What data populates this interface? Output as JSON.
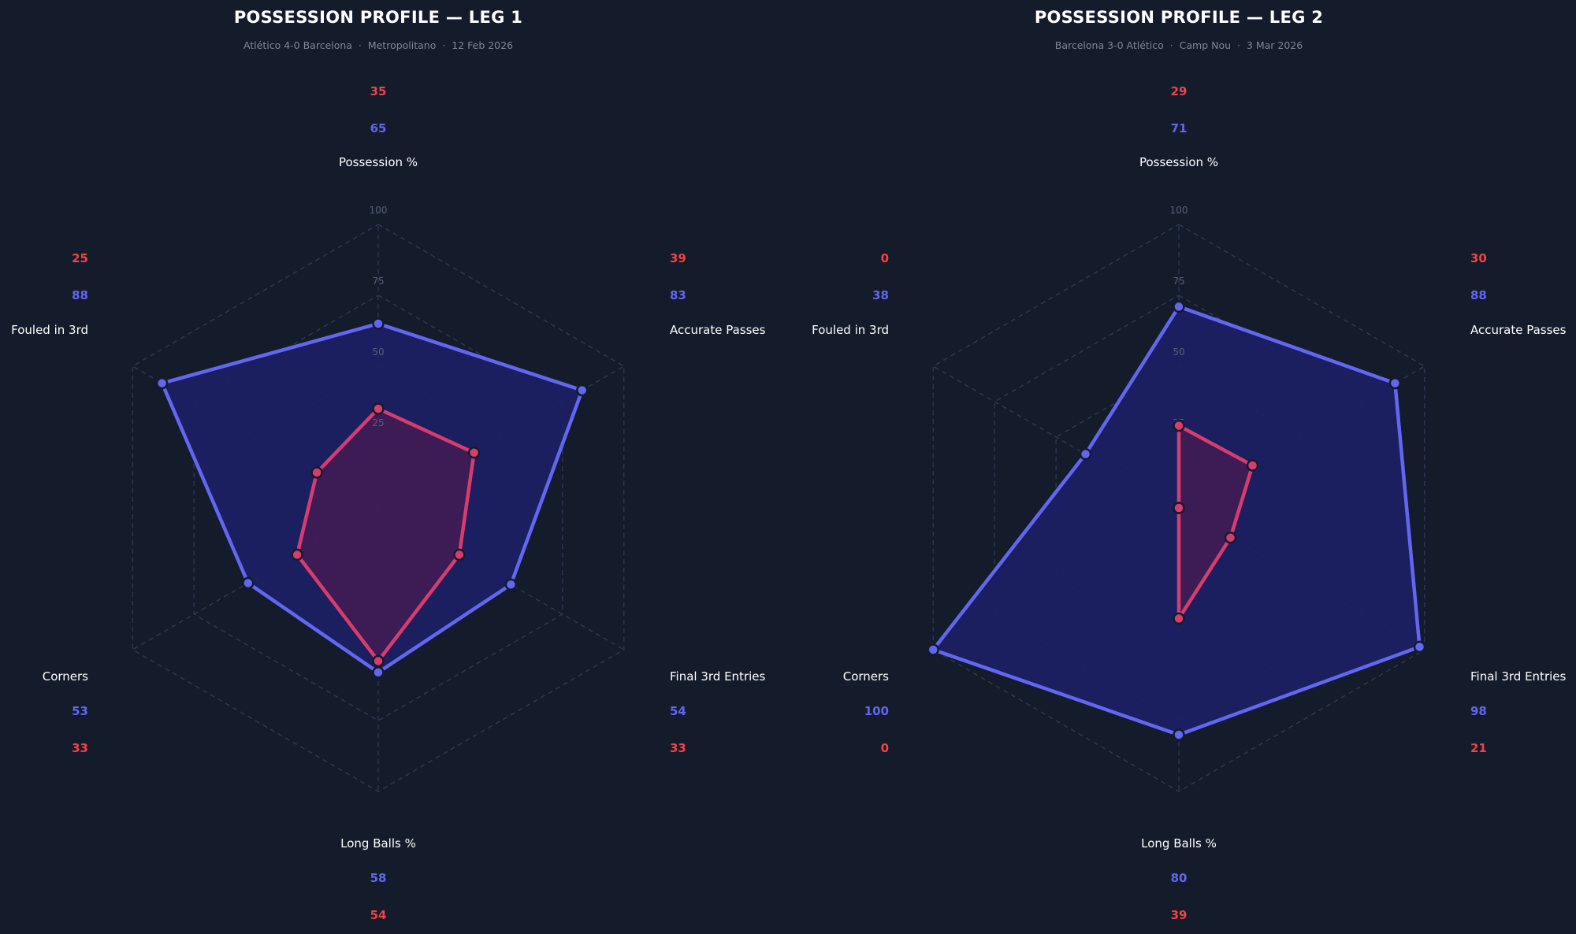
{
  "chart_data": [
    {
      "type": "radar",
      "title": "POSSESSION PROFILE — LEG 1",
      "subtitle": "Atlético 4-0 Barcelona  ·  Metropolitano  ·  12 Feb 2026",
      "axes": [
        "Possession %",
        "Accurate Passes",
        "Final 3rd Entries",
        "Long Balls %",
        "Corners",
        "Fouled in 3rd"
      ],
      "rlim": [
        0,
        100
      ],
      "ring_ticks": [
        "25",
        "50",
        "75",
        "100"
      ],
      "grid": true,
      "series": [
        {
          "name": "Barcelona",
          "color": "#6366f1",
          "values": [
            65,
            83,
            54,
            58,
            53,
            88
          ]
        },
        {
          "name": "Atlético",
          "color": "#ef4444",
          "values": [
            35,
            39,
            33,
            54,
            33,
            25
          ]
        }
      ]
    },
    {
      "type": "radar",
      "title": "POSSESSION PROFILE — LEG 2",
      "subtitle": "Barcelona 3-0 Atlético  ·  Camp Nou  ·  3 Mar 2026",
      "axes": [
        "Possession %",
        "Accurate Passes",
        "Final 3rd Entries",
        "Long Balls %",
        "Corners",
        "Fouled in 3rd"
      ],
      "rlim": [
        0,
        100
      ],
      "ring_ticks": [
        "25",
        "50",
        "75",
        "100"
      ],
      "grid": true,
      "series": [
        {
          "name": "Barcelona",
          "color": "#6366f1",
          "values": [
            71,
            88,
            98,
            80,
            100,
            38
          ]
        },
        {
          "name": "Atlético",
          "color": "#ef4444",
          "values": [
            29,
            30,
            21,
            39,
            0,
            0
          ]
        }
      ]
    }
  ],
  "colors": {
    "background": "#141b2b",
    "series_a": "#6366f1",
    "series_b_line": "#d63d6e",
    "series_b_label": "#ef4444",
    "grid": "#2e3a55"
  }
}
